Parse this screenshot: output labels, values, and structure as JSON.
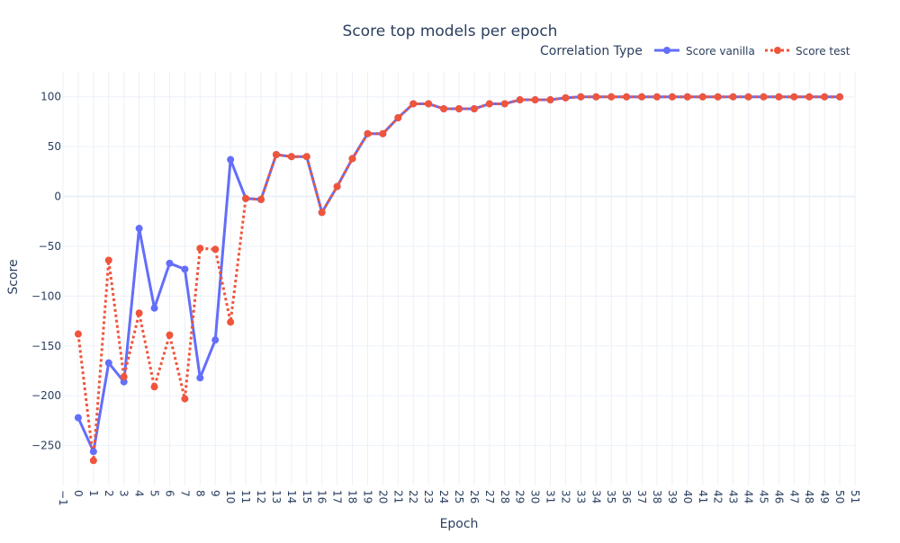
{
  "chart_data": {
    "type": "line",
    "title": "Score top models per epoch",
    "xlabel": "Epoch",
    "ylabel": "Score",
    "xlim": [
      -1,
      51
    ],
    "ylim": [
      -290,
      125
    ],
    "x_ticks": [
      -1,
      0,
      1,
      2,
      3,
      4,
      5,
      6,
      7,
      8,
      9,
      10,
      11,
      12,
      13,
      14,
      15,
      16,
      17,
      18,
      19,
      20,
      21,
      22,
      23,
      24,
      25,
      26,
      27,
      28,
      29,
      30,
      31,
      32,
      33,
      34,
      35,
      36,
      37,
      38,
      39,
      40,
      41,
      42,
      43,
      44,
      45,
      46,
      47,
      48,
      49,
      50,
      51
    ],
    "y_ticks": [
      100,
      50,
      0,
      -50,
      -100,
      -150,
      -200,
      -250
    ],
    "y_tick_labels": [
      "100",
      "50",
      "0",
      "−50",
      "−100",
      "−150",
      "−200",
      "−250"
    ],
    "grid": true,
    "legend": {
      "title": "Correlation Type",
      "placement": "top-right",
      "orientation": "horizontal"
    },
    "x": [
      0,
      1,
      2,
      3,
      4,
      5,
      6,
      7,
      8,
      9,
      10,
      11,
      12,
      13,
      14,
      15,
      16,
      17,
      18,
      19,
      20,
      21,
      22,
      23,
      24,
      25,
      26,
      27,
      28,
      29,
      30,
      31,
      32,
      33,
      34,
      35,
      36,
      37,
      38,
      39,
      40,
      41,
      42,
      43,
      44,
      45,
      46,
      47,
      48,
      49,
      50
    ],
    "series": [
      {
        "name": "Score vanilla",
        "color": "#636efa",
        "dash": "solid",
        "values": [
          -222,
          -256,
          -167,
          -186,
          -32,
          -112,
          -67,
          -73,
          -182,
          -144,
          37,
          -2,
          -3,
          42,
          40,
          40,
          -16,
          10,
          38,
          63,
          63,
          79,
          93,
          93,
          88,
          88,
          88,
          93,
          93,
          97,
          97,
          97,
          99,
          100,
          100,
          100,
          100,
          100,
          100,
          100,
          100,
          100,
          100,
          100,
          100,
          100,
          100,
          100,
          100,
          100,
          100
        ]
      },
      {
        "name": "Score test",
        "color": "#ef553b",
        "dash": "dot",
        "values": [
          -138,
          -265,
          -64,
          -181,
          -117,
          -191,
          -139,
          -203,
          -52,
          -53,
          -126,
          -2,
          -3,
          42,
          40,
          40,
          -16,
          10,
          38,
          63,
          63,
          79,
          93,
          93,
          88,
          88,
          88,
          93,
          93,
          97,
          97,
          97,
          99,
          100,
          100,
          100,
          100,
          100,
          100,
          100,
          100,
          100,
          100,
          100,
          100,
          100,
          100,
          100,
          100,
          100,
          100
        ]
      }
    ]
  }
}
